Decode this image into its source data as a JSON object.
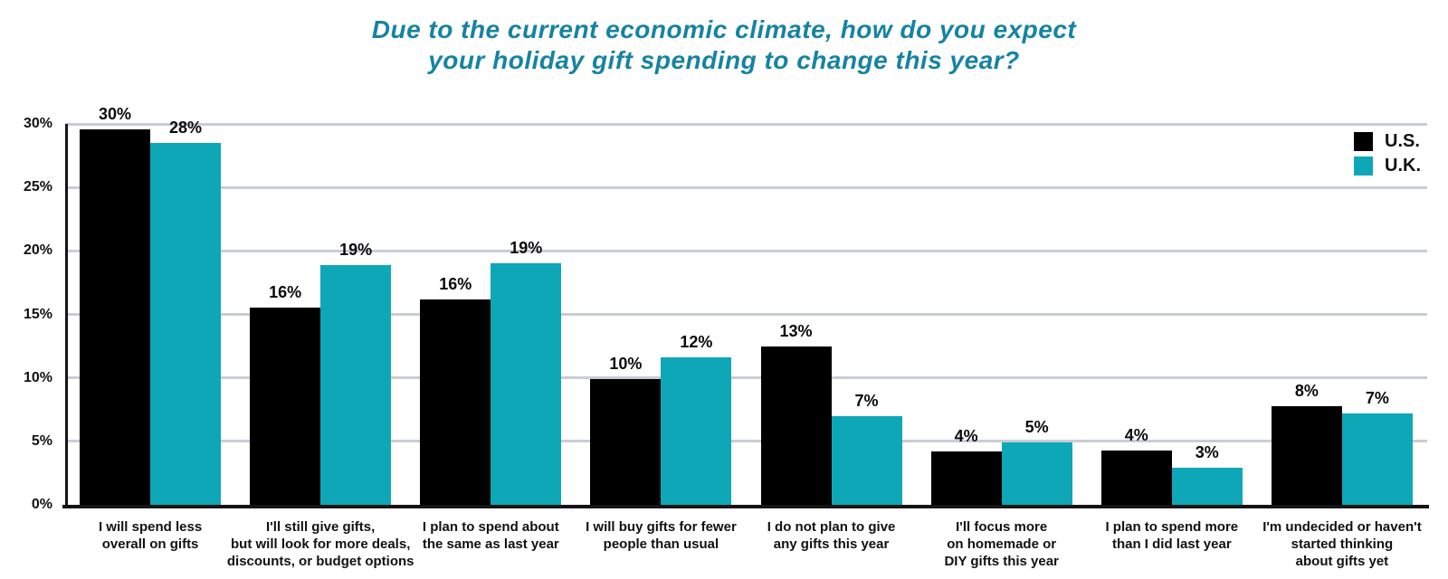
{
  "title": {
    "lines": [
      "Due to the current economic climate, how do you expect",
      "your holiday gift spending to change this year?"
    ],
    "color": "#1683a2"
  },
  "legend": {
    "position": "top-right",
    "entries": [
      {
        "label": "U.S.",
        "color": "#000000"
      },
      {
        "label": "U.K.",
        "color": "#0ea7b7"
      }
    ]
  },
  "chart_data": {
    "type": "bar",
    "title": "Due to the current economic climate, how do you expect your holiday gift spending to change this year?",
    "categories": [
      [
        "I will spend less",
        "overall on gifts"
      ],
      [
        "I'll still give gifts,",
        "but will look for more deals,",
        "discounts, or budget options"
      ],
      [
        "I plan to spend about",
        "the same as last year"
      ],
      [
        "I will buy gifts for fewer",
        "people than usual"
      ],
      [
        "I do not plan to give",
        "any gifts this year"
      ],
      [
        "I'll focus more",
        "on homemade or",
        "DIY gifts this year"
      ],
      [
        "I plan to spend more",
        "than I did last year"
      ],
      [
        "I'm undecided or haven't",
        "started thinking",
        "about gifts yet"
      ]
    ],
    "series": [
      {
        "name": "U.S.",
        "color": "#000000",
        "values": [
          30,
          16,
          16,
          10,
          13,
          4,
          4,
          8
        ],
        "value_labels": [
          "30%",
          "16%",
          "16%",
          "10%",
          "13%",
          "4%",
          "4%",
          "8%"
        ],
        "rendered_heights_pct": [
          29.6,
          15.5,
          16.2,
          9.9,
          12.5,
          4.2,
          4.3,
          7.8
        ]
      },
      {
        "name": "U.K.",
        "color": "#0ea7b7",
        "values": [
          28,
          19,
          19,
          12,
          7,
          5,
          3,
          7
        ],
        "value_labels": [
          "28%",
          "19%",
          "19%",
          "12%",
          "7%",
          "5%",
          "3%",
          "7%"
        ],
        "rendered_heights_pct": [
          28.5,
          18.9,
          19.0,
          11.6,
          7.0,
          4.9,
          2.9,
          7.2
        ]
      }
    ],
    "y_axis": {
      "min": 0,
      "max": 30,
      "tick_step": 5,
      "tick_labels": [
        "0%",
        "5%",
        "10%",
        "15%",
        "20%",
        "25%",
        "30%"
      ],
      "grid": true
    },
    "legend_position": "top-right"
  }
}
